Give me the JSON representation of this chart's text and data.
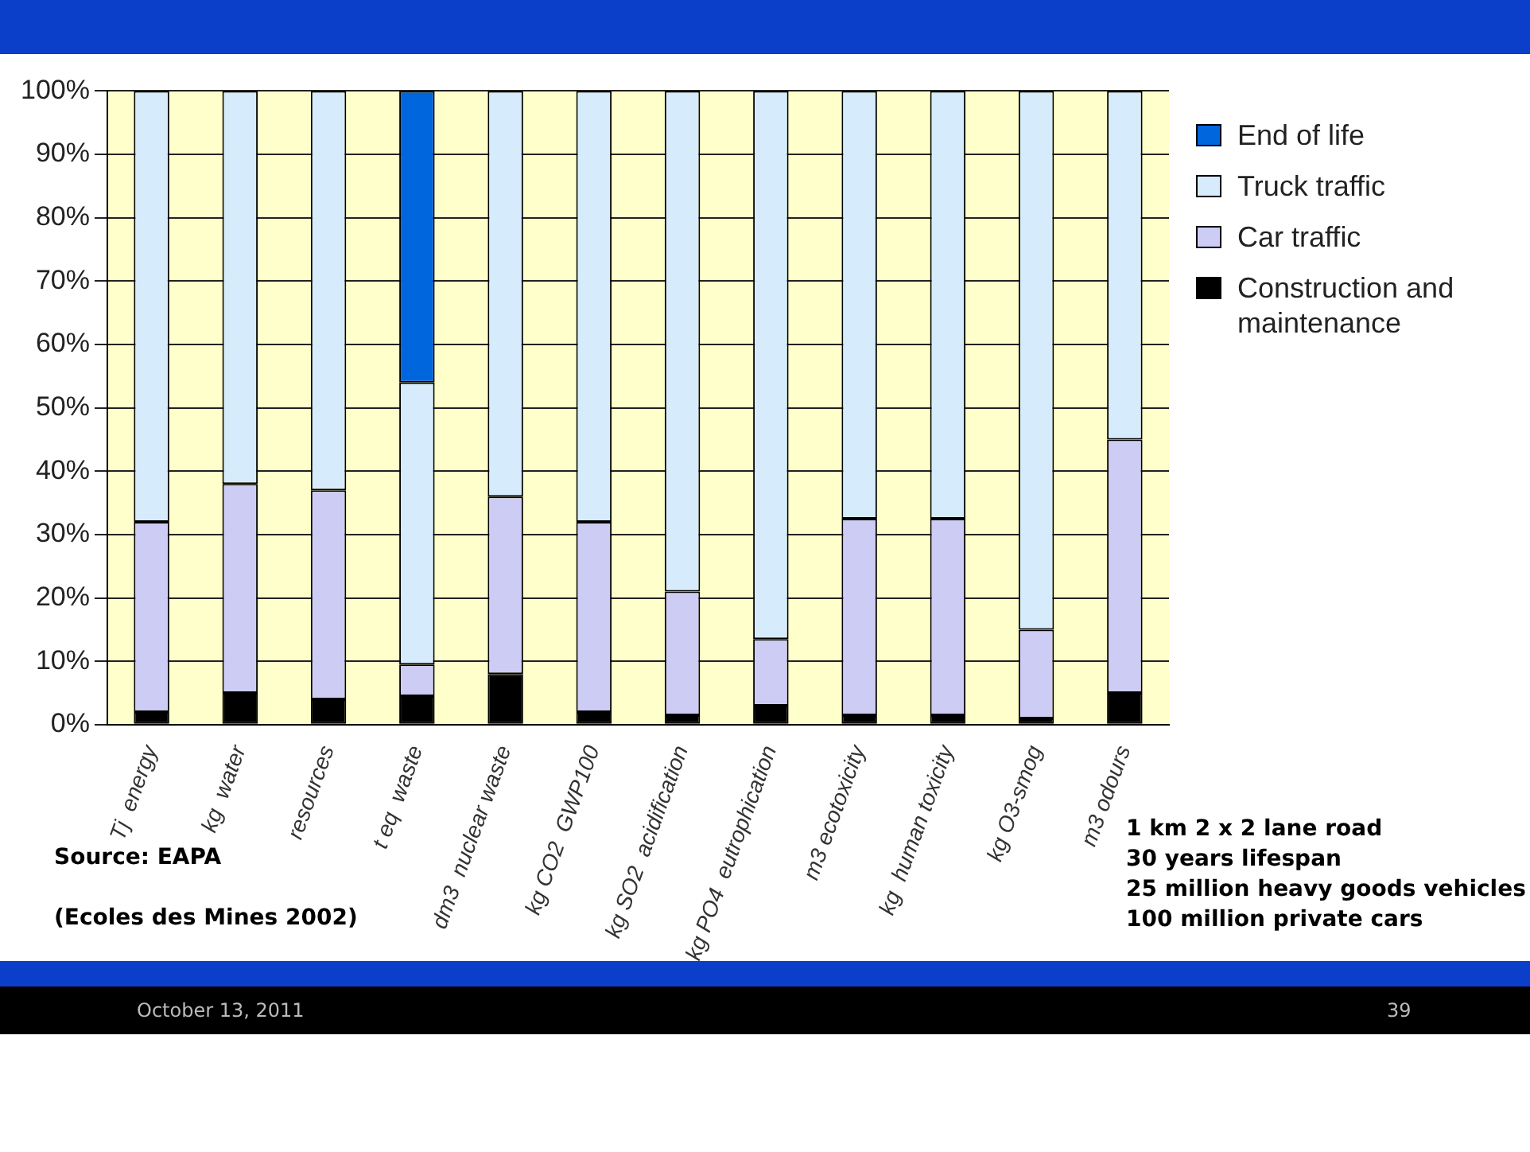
{
  "chart_data": {
    "type": "bar",
    "stacked": true,
    "categories": [
      "Tj  energy",
      "kg  water",
      "resources",
      "t eq  waste",
      "dm3  nuclear waste",
      "kg CO2  GWP100",
      "kg SO2  acidification",
      "kg PO4  eutrophication",
      "m3 ecotoxicity",
      "kg  human toxicity",
      "kg O3-smog",
      "m3 odours"
    ],
    "series": [
      {
        "name": "Construction and maintenance",
        "color": "#000000",
        "values": [
          2,
          5,
          4,
          4.5,
          8,
          2,
          1.5,
          3,
          1.5,
          1.5,
          1,
          5
        ]
      },
      {
        "name": "Car traffic",
        "color": "#ccccf5",
        "values": [
          30,
          33,
          33,
          5,
          28,
          30,
          19.5,
          10.5,
          31,
          31,
          14,
          40
        ]
      },
      {
        "name": "Truck traffic",
        "color": "#d6ebfb",
        "values": [
          68,
          62,
          63,
          44.5,
          64,
          68,
          79,
          86.5,
          67.5,
          67.5,
          85,
          55
        ]
      },
      {
        "name": "End of life",
        "color": "#0066dd",
        "values": [
          0,
          0,
          0,
          46,
          0,
          0,
          0,
          0,
          0,
          0,
          0,
          0
        ]
      }
    ],
    "ylim": [
      0,
      100
    ],
    "yticks": [
      {
        "value": 0,
        "label": "0%"
      },
      {
        "value": 10,
        "label": "10%"
      },
      {
        "value": 20,
        "label": "20%"
      },
      {
        "value": 30,
        "label": "30%"
      },
      {
        "value": 40,
        "label": "40%"
      },
      {
        "value": 50,
        "label": "50%"
      },
      {
        "value": 60,
        "label": "60%"
      },
      {
        "value": 70,
        "label": "70%"
      },
      {
        "value": 80,
        "label": "80%"
      },
      {
        "value": 90,
        "label": "90%"
      },
      {
        "value": 100,
        "label": "100%"
      }
    ],
    "grid": "y",
    "legend": "right",
    "annotations": [
      "Source: EAPA",
      "(Ecoles des Mines 2002)",
      "1 km 2 x 2 lane road",
      "30 years lifespan",
      "25 million heavy goods vehicles",
      "100 million private cars",
      "October 13, 2011",
      "39"
    ]
  }
}
